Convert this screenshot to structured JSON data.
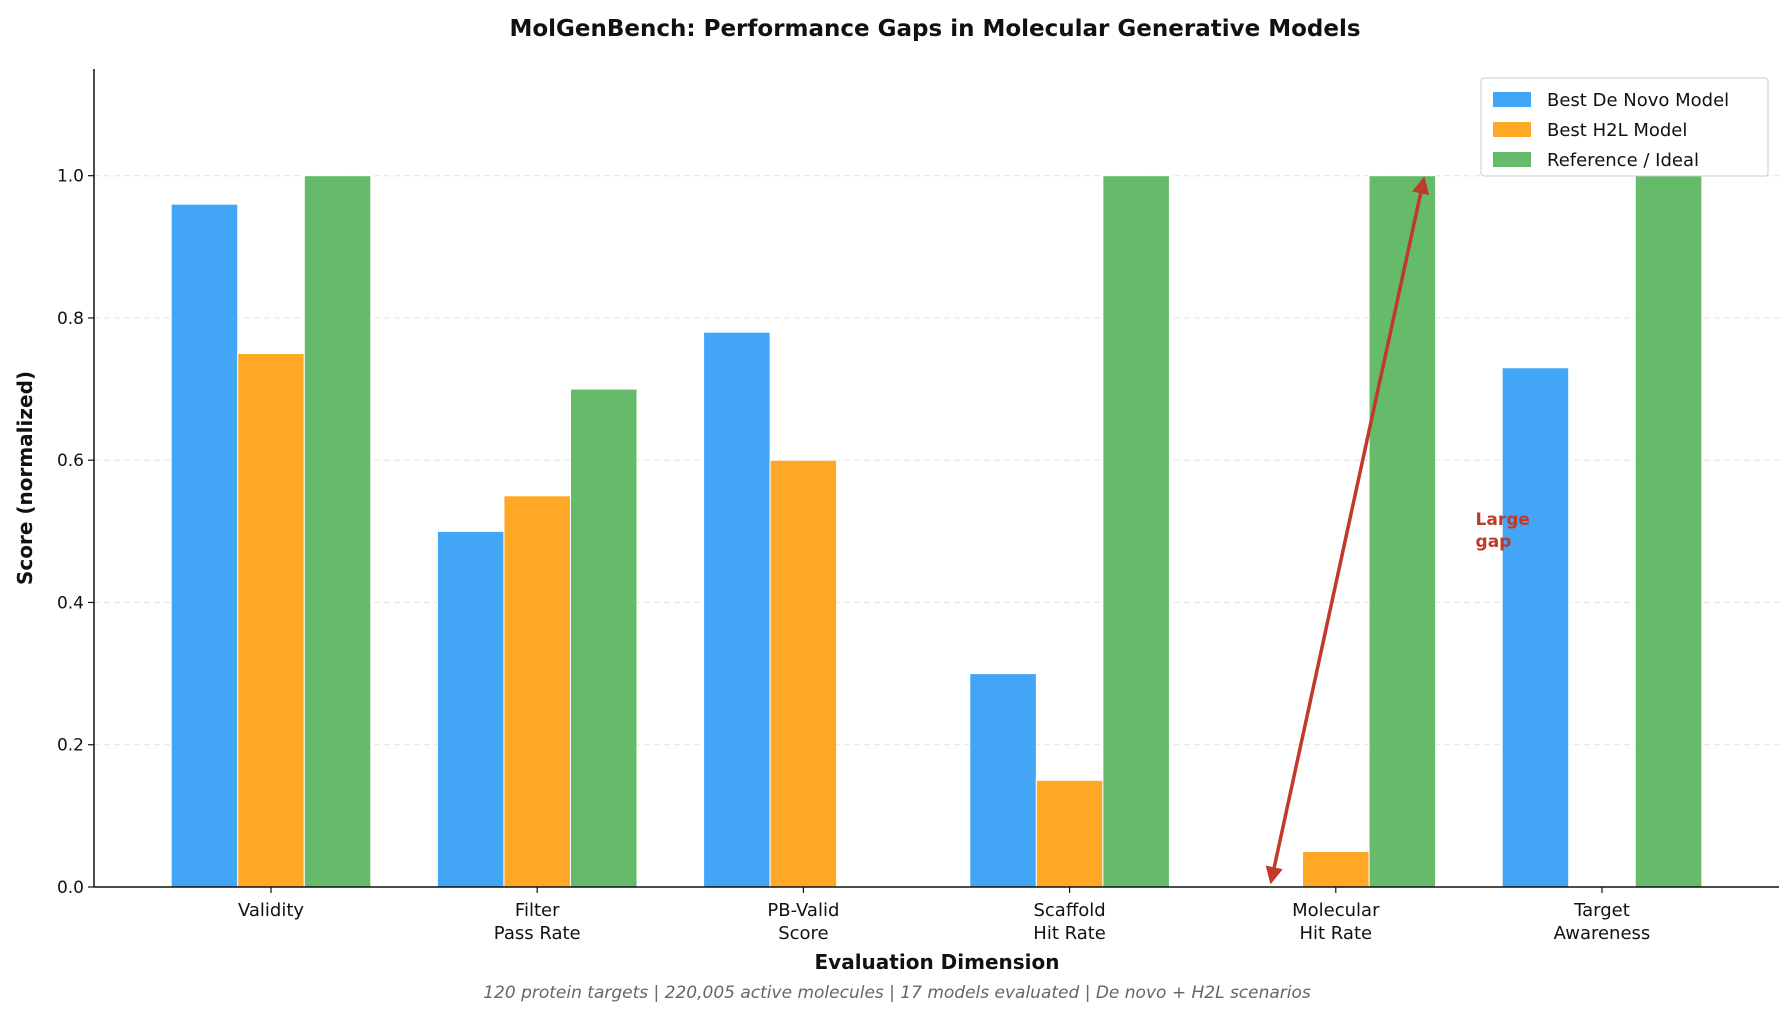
{
  "chart_data": {
    "type": "bar",
    "title": "MolGenBench: Performance Gaps in Molecular Generative Models",
    "subtitle": "120 protein targets | 220,005 active molecules | 17 models evaluated | De novo + H2L scenarios",
    "x_label": "Evaluation Dimension",
    "y_label": "Score (normalized)",
    "categories": [
      "Validity",
      "Filter\nPass Rate",
      "PB-Valid\nScore",
      "Scaffold\nHit Rate",
      "Molecular\nHit Rate",
      "Target\nAwareness"
    ],
    "series": [
      {
        "name": "Best De Novo Model",
        "color": "#42a5f5",
        "values": [
          0.96,
          0.5,
          0.78,
          0.3,
          null,
          0.73
        ]
      },
      {
        "name": "Best H2L Model",
        "color": "#ffa726",
        "values": [
          0.75,
          0.55,
          0.6,
          0.15,
          0.05,
          null
        ]
      },
      {
        "name": "Reference / Ideal",
        "color": "#66bb6a",
        "values": [
          1.0,
          0.7,
          null,
          1.0,
          1.0,
          1.0
        ]
      }
    ],
    "annotation": "Large\ngap",
    "ylim": [
      0,
      1.15
    ],
    "yticks": [
      {
        "value": 0,
        "label": "0.0"
      },
      0.2,
      0.4,
      0.6,
      0.8,
      {
        "value": 1,
        "label": "1.0"
      }
    ],
    "grid": true,
    "legend": "upper right"
  }
}
